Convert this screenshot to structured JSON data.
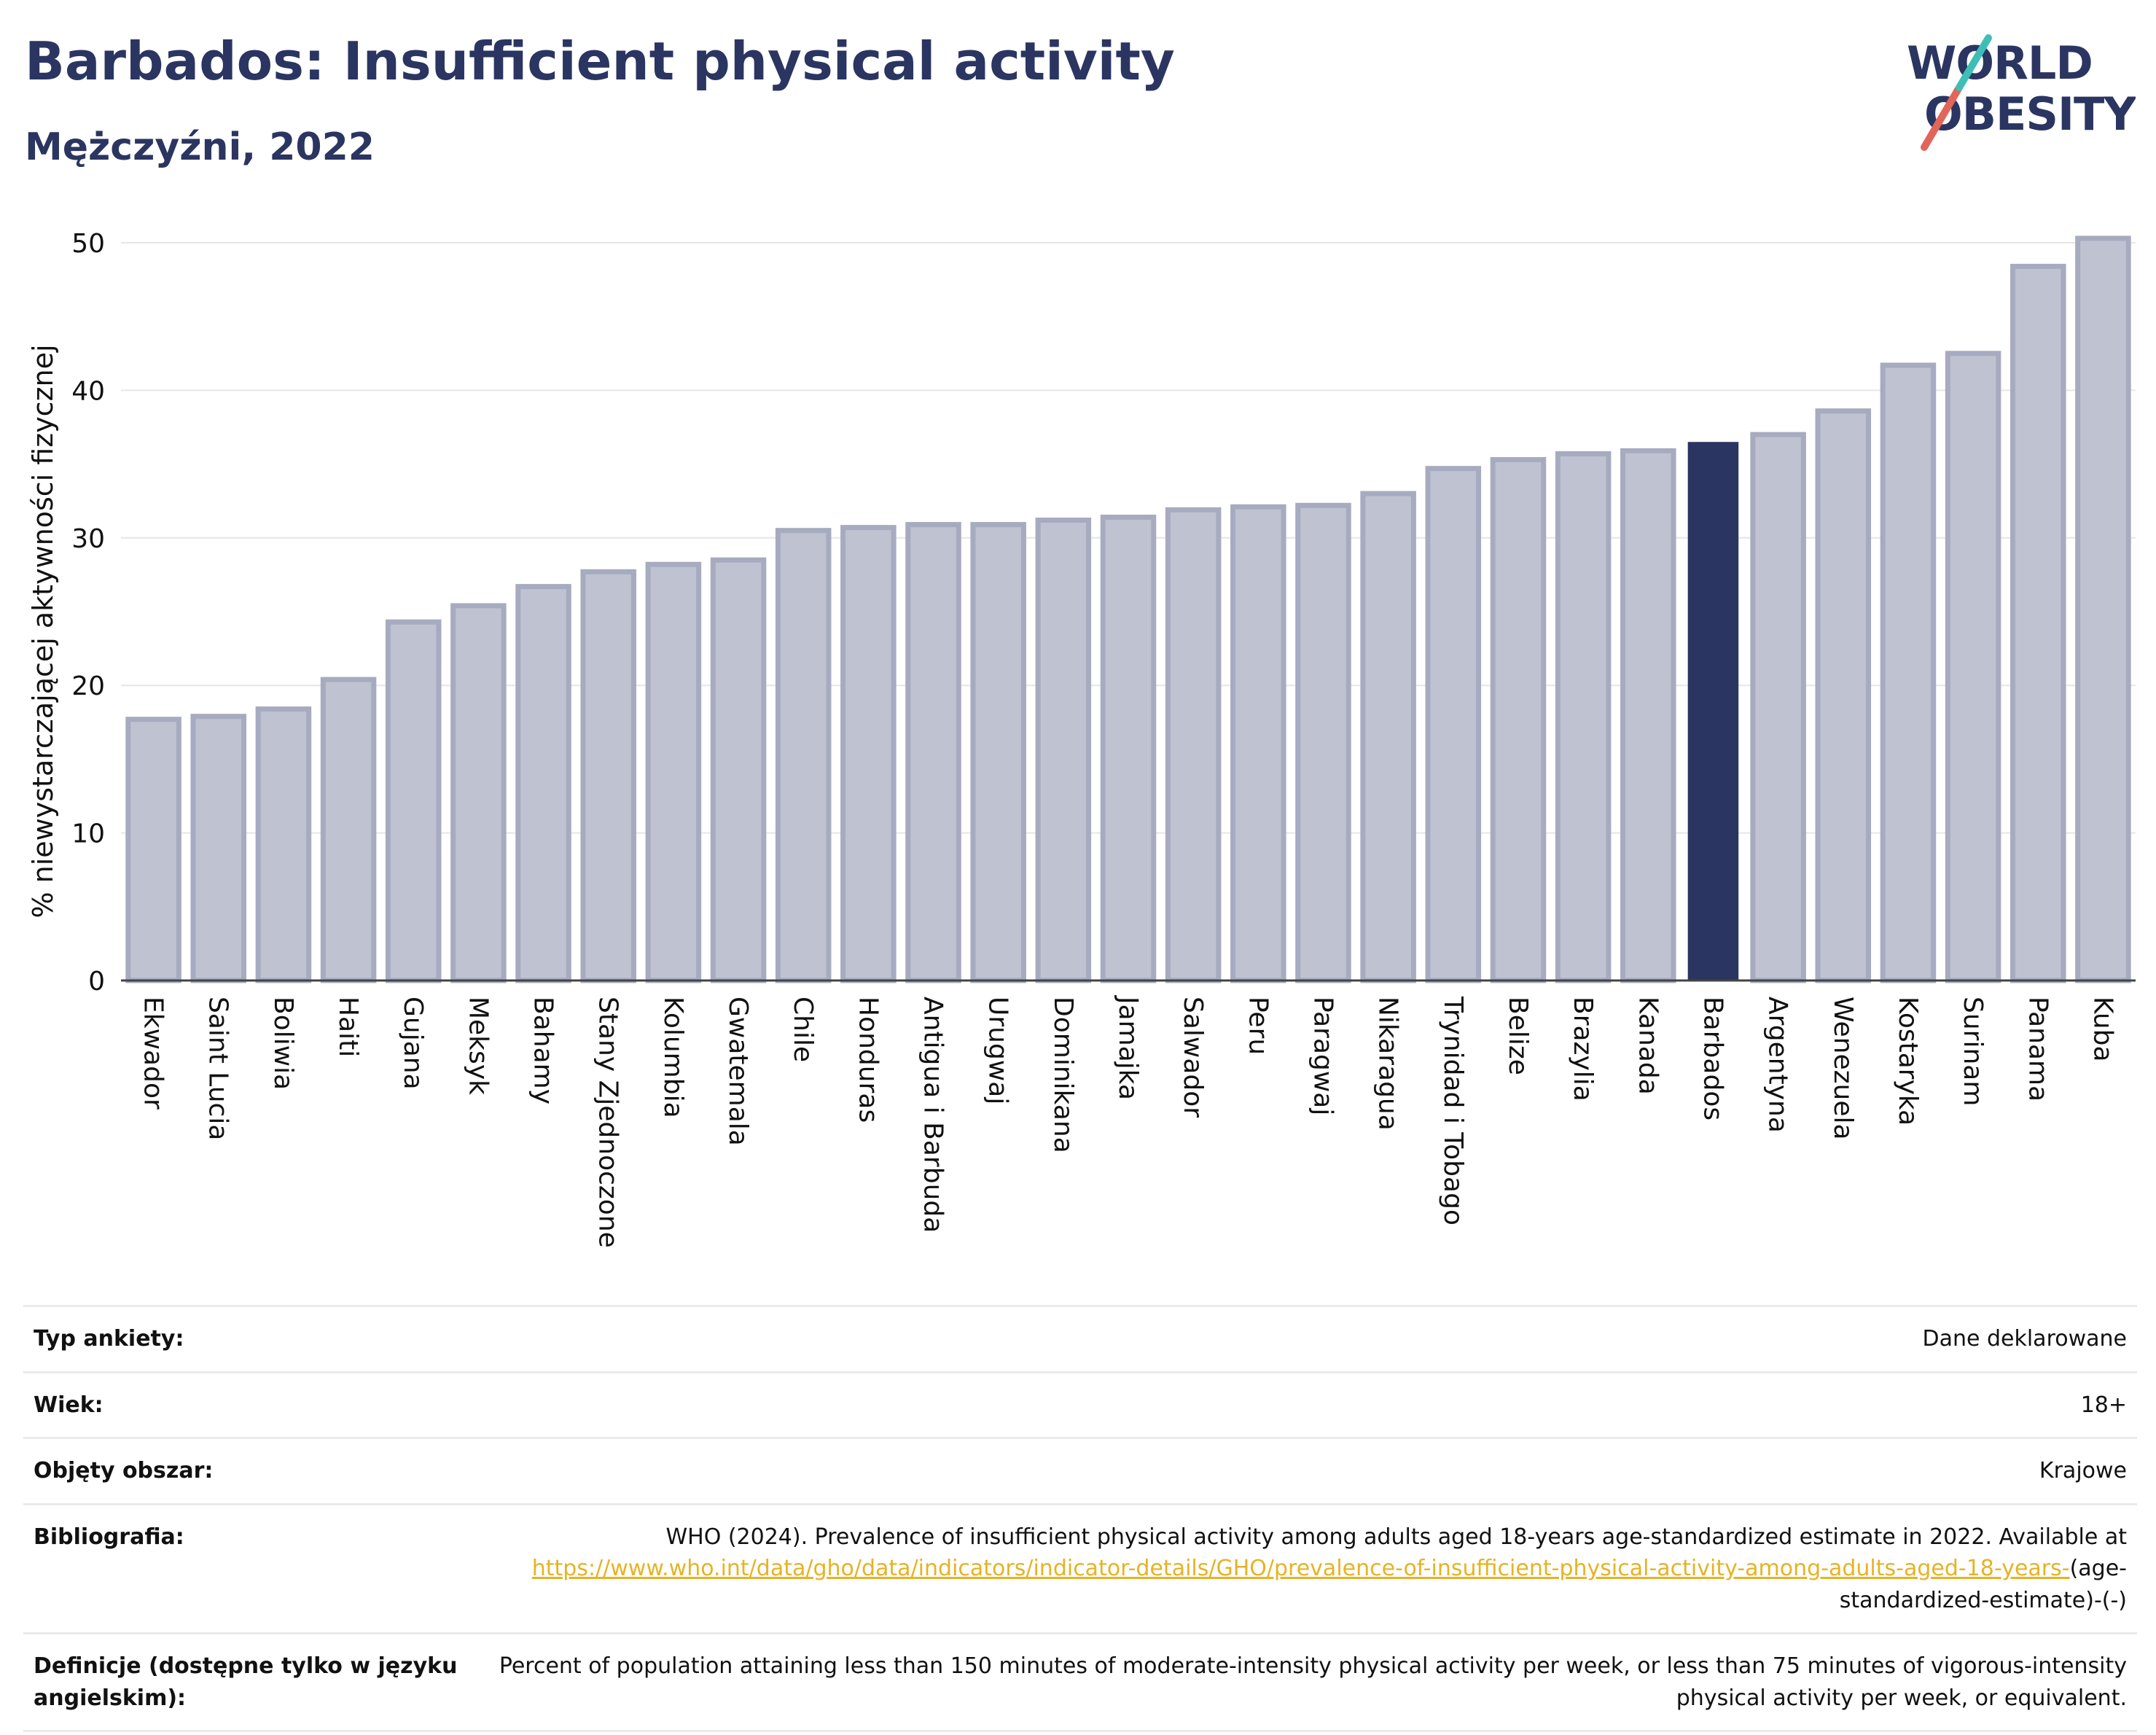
{
  "header": {
    "title": "Barbados: Insufficient physical activity",
    "subtitle": "Mężczyźni, 2022"
  },
  "logo": {
    "line1": "WORLD",
    "line2": "OBESITY",
    "colors": {
      "text": "#2b3561",
      "slash_red": "#e2655a",
      "slash_teal": "#3dbfb8"
    }
  },
  "colors": {
    "bar_fill": "#bfc2d0",
    "bar_stroke": "#a7abbf",
    "highlight": "#2b3561",
    "grid": "#e6e6e6",
    "axis": "#444444"
  },
  "chart_data": {
    "type": "bar",
    "ylabel": "% niewystarczającej aktywności fizycznej",
    "ylim": [
      0,
      50
    ],
    "yticks": [
      0,
      10,
      20,
      30,
      40,
      50
    ],
    "highlight": "Barbados",
    "categories": [
      "Ekwador",
      "Saint Lucia",
      "Boliwia",
      "Haiti",
      "Gujana",
      "Meksyk",
      "Bahamy",
      "Stany Zjednoczone",
      "Kolumbia",
      "Gwatemala",
      "Chile",
      "Honduras",
      "Antigua i Barbuda",
      "Urugwaj",
      "Dominikana",
      "Jamajka",
      "Salwador",
      "Peru",
      "Paragwaj",
      "Nikaragua",
      "Trynidad i Tobago",
      "Belize",
      "Brazylia",
      "Kanada",
      "Barbados",
      "Argentyna",
      "Wenezuela",
      "Kostaryka",
      "Surinam",
      "Panama",
      "Kuba"
    ],
    "values": [
      17.7,
      17.9,
      18.4,
      20.4,
      24.3,
      25.4,
      26.7,
      27.7,
      28.2,
      28.5,
      30.5,
      30.7,
      30.9,
      30.9,
      31.2,
      31.4,
      31.9,
      32.1,
      32.2,
      33.0,
      34.7,
      35.3,
      35.7,
      35.9,
      36.5,
      37.0,
      38.6,
      41.7,
      42.5,
      48.4,
      50.3
    ]
  },
  "info": [
    {
      "label": "Typ ankiety:",
      "value": "Dane deklarowane"
    },
    {
      "label": "Wiek:",
      "value": "18+"
    },
    {
      "label": "Objęty obszar:",
      "value": "Krajowe"
    },
    {
      "label": "Bibliografia:",
      "value_pre": "WHO (2024). Prevalence of insufficient physical activity among adults aged 18-years age-standardized estimate in 2022. Available at ",
      "link": "https://www.who.int/data/gho/data/indicators/indicator-details/GHO/prevalence-of-insufficient-physical-activity-among-adults-aged-18-years-",
      "value_post": "(age-standardized-estimate)-(-)"
    },
    {
      "label": "Definicje (dostępne tylko w języku angielskim):",
      "value": "Percent of population attaining less than 150 minutes of moderate-intensity physical activity per week, or less than 75 minutes of vigorous-intensity physical activity per week, or equivalent."
    }
  ]
}
